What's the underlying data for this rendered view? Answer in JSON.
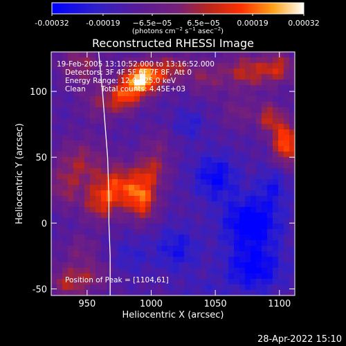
{
  "chart_data": {
    "type": "heatmap",
    "title": "Reconstructed RHESSI Image",
    "xlabel": "Heliocentric X (arcsec)",
    "ylabel": "Heliocentric Y (arcsec)",
    "xlim": [
      922,
      1112
    ],
    "ylim": [
      -55,
      130
    ],
    "xticks": [
      950,
      1000,
      1050,
      1100
    ],
    "yticks": [
      -50,
      0,
      50,
      100
    ],
    "colorbar": {
      "range": [
        -0.00032,
        0.00032
      ],
      "tick_values": [
        -0.00032,
        -0.00019,
        -6.5e-05,
        6.5e-05,
        0.00019,
        0.00032
      ],
      "tick_labels": [
        "-0.00032",
        "-0.00019",
        "−6.5e−05",
        "6.5e−05",
        "0.00019",
        "0.00032"
      ],
      "unit_label": {
        "prefix": "(photons cm",
        "exp1": "−2",
        "mid1": " s",
        "exp2": "−1",
        "mid2": " asec",
        "exp3": "−2",
        "suffix": ")"
      }
    },
    "annotations": {
      "time_range": "19-Feb-2005 13:10:52.000 to 13:16:52.000",
      "detectors": "Detectors: 3F 4F 5F 6F 7F 8F, Att 0",
      "energy_range": "Energy Range: 12.0 - 25.0 keV",
      "algorithm": "Clean",
      "total_counts": "Total counts: 4.45E+03",
      "peak": "Position of Peak = [1104,61]"
    },
    "limb_curve": [
      [
        959,
        130
      ],
      [
        962,
        100
      ],
      [
        964,
        75
      ],
      [
        966,
        50
      ],
      [
        967,
        20
      ],
      [
        967,
        0
      ],
      [
        968,
        -25
      ],
      [
        968,
        -55
      ]
    ],
    "blobs": [
      {
        "x": 945,
        "y": 120,
        "sx": 12,
        "sy": 10,
        "a": 0.00015
      },
      {
        "x": 990,
        "y": 108,
        "sx": 9,
        "sy": 9,
        "a": 0.00032
      },
      {
        "x": 978,
        "y": 95,
        "sx": 8,
        "sy": 8,
        "a": 0.00022
      },
      {
        "x": 1000,
        "y": 112,
        "sx": 10,
        "sy": 8,
        "a": 0.00018
      },
      {
        "x": 960,
        "y": 92,
        "sx": 10,
        "sy": 10,
        "a": 0.00012
      },
      {
        "x": 945,
        "y": 45,
        "sx": 14,
        "sy": 13,
        "a": 0.00016
      },
      {
        "x": 975,
        "y": 28,
        "sx": 11,
        "sy": 11,
        "a": 0.00024
      },
      {
        "x": 993,
        "y": 18,
        "sx": 8,
        "sy": 11,
        "a": 0.00028
      },
      {
        "x": 960,
        "y": 15,
        "sx": 10,
        "sy": 10,
        "a": 0.0002
      },
      {
        "x": 932,
        "y": 25,
        "sx": 8,
        "sy": 10,
        "a": 0.00012
      },
      {
        "x": 1000,
        "y": 40,
        "sx": 9,
        "sy": 9,
        "a": 0.00018
      },
      {
        "x": 1005,
        "y": 60,
        "sx": 8,
        "sy": 8,
        "a": 8e-05
      },
      {
        "x": 1018,
        "y": 118,
        "sx": 10,
        "sy": 7,
        "a": 0.00016
      },
      {
        "x": 1042,
        "y": 110,
        "sx": 10,
        "sy": 9,
        "a": 0.00012
      },
      {
        "x": 1075,
        "y": 115,
        "sx": 14,
        "sy": 9,
        "a": 0.0002
      },
      {
        "x": 1100,
        "y": 118,
        "sx": 9,
        "sy": 8,
        "a": 0.00018
      },
      {
        "x": 1105,
        "y": 61,
        "sx": 7,
        "sy": 11,
        "a": 0.00032
      },
      {
        "x": 1092,
        "y": 80,
        "sx": 7,
        "sy": 8,
        "a": 0.0002
      },
      {
        "x": 1068,
        "y": 85,
        "sx": 9,
        "sy": 9,
        "a": 0.0001
      },
      {
        "x": 1050,
        "y": 35,
        "sx": 12,
        "sy": 12,
        "a": -0.00018
      },
      {
        "x": 1078,
        "y": 0,
        "sx": 16,
        "sy": 14,
        "a": -0.00024
      },
      {
        "x": 1080,
        "y": -35,
        "sx": 16,
        "sy": 12,
        "a": -0.0002
      },
      {
        "x": 1020,
        "y": -20,
        "sx": 12,
        "sy": 12,
        "a": -0.00014
      },
      {
        "x": 1095,
        "y": 28,
        "sx": 8,
        "sy": 10,
        "a": -0.00012
      },
      {
        "x": 1030,
        "y": 75,
        "sx": 8,
        "sy": 8,
        "a": -0.0001
      },
      {
        "x": 935,
        "y": -45,
        "sx": 10,
        "sy": 9,
        "a": 0.00018
      },
      {
        "x": 955,
        "y": -40,
        "sx": 9,
        "sy": 8,
        "a": 0.00012
      },
      {
        "x": 945,
        "y": -20,
        "sx": 9,
        "sy": 8,
        "a": 0.0001
      },
      {
        "x": 985,
        "y": -25,
        "sx": 10,
        "sy": 10,
        "a": -8e-05
      },
      {
        "x": 1040,
        "y": -50,
        "sx": 12,
        "sy": 6,
        "a": -5e-05
      }
    ],
    "background_level": -0.00012
  },
  "footer": {
    "timestamp": "28-Apr-2022 15:10"
  }
}
